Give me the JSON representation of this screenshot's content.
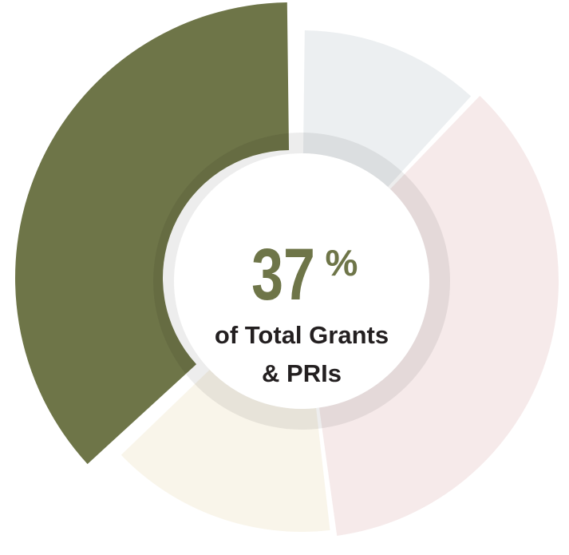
{
  "chart_data": {
    "type": "pie",
    "donut": true,
    "values": [
      12,
      36,
      15,
      37
    ],
    "highlighted_index": 3,
    "colors": [
      "#ECEFF1",
      "#F6EAEA",
      "#F9F5EA",
      "#6E7548"
    ],
    "center": {
      "number": "37",
      "unit": "%",
      "line1": "of Total Grants",
      "line2": "& PRIs"
    },
    "accent_color": "#6E7548",
    "text_color": "#231F20"
  }
}
